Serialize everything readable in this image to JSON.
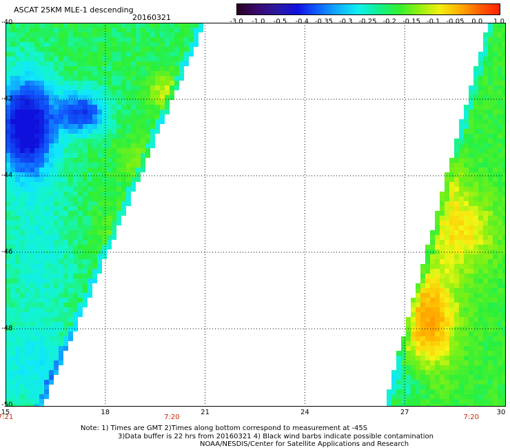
{
  "header": {
    "title": "ASCAT 25KM MLE-1 descending",
    "date": "20160321"
  },
  "colorbar": {
    "ticks": [
      "-3.0",
      "-1.0",
      "-0.5",
      "-0.4",
      "-0.35",
      "-0.3",
      "-0.25",
      "-0.2",
      "-0.15",
      "-0.1",
      "-0.05",
      "0.0",
      "1.0"
    ],
    "colors": [
      "#2a0020",
      "#3a0a6e",
      "#2a1aa0",
      "#1010e0",
      "#1060ff",
      "#10b0ff",
      "#10f0f0",
      "#10f090",
      "#30f030",
      "#90f010",
      "#f0f010",
      "#ffb000",
      "#ff6000",
      "#ff2000"
    ]
  },
  "map": {
    "lat_labels": [
      "-40",
      "-42",
      "-44",
      "-46",
      "-48",
      "-50"
    ],
    "lon_labels": [
      "15",
      "18",
      "21",
      "24",
      "27",
      "30"
    ],
    "time_labels": [
      {
        "text": "7:21",
        "lon": 15
      },
      {
        "text": "7:20",
        "lon": 20
      },
      {
        "text": "7:20",
        "lon": 29
      }
    ],
    "lat_range": [
      -50,
      -40
    ],
    "lon_range": [
      15,
      30
    ],
    "grid": true
  },
  "notes": [
    "Note: 1) Times are GMT 2)Times along bottom correspond to measurement at -45S",
    "3)Data buffer is 22 hrs from 20160321 4) Black wind barbs indicate possible contamination",
    "NOAA/NESDIS/Center for Satellite Applications and Research"
  ]
}
